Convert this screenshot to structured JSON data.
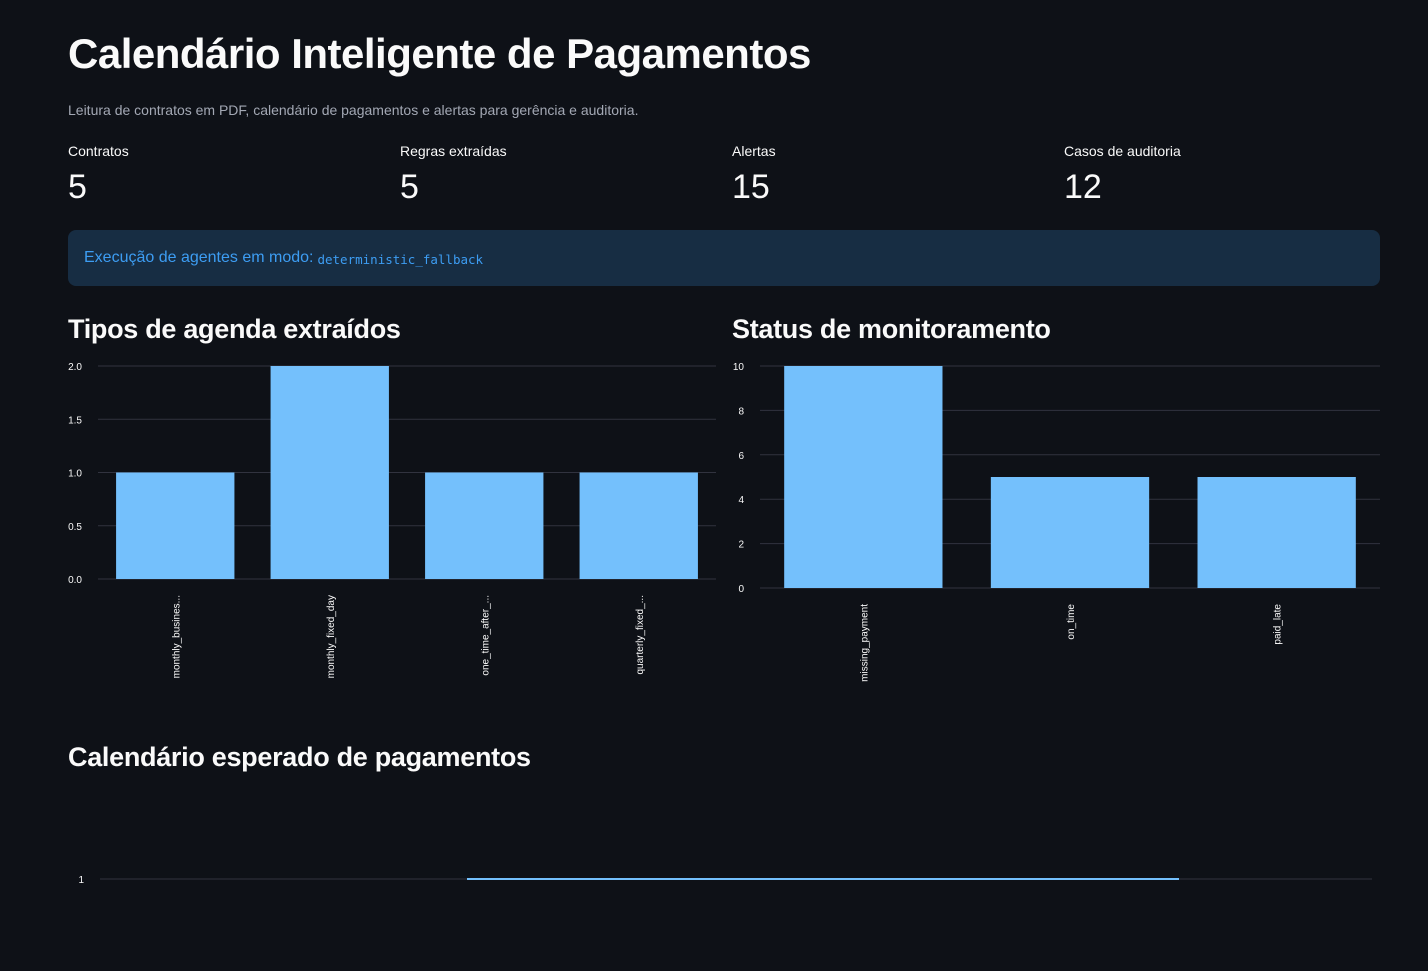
{
  "header": {
    "title": "Calendário Inteligente de Pagamentos",
    "subtitle": "Leitura de contratos em PDF, calendário de pagamentos e alertas para gerência e auditoria."
  },
  "metrics": [
    {
      "label": "Contratos",
      "value": "5"
    },
    {
      "label": "Regras extraídas",
      "value": "5"
    },
    {
      "label": "Alertas",
      "value": "15"
    },
    {
      "label": "Casos de auditoria",
      "value": "12"
    }
  ],
  "info": {
    "text": "Execução de agentes em modo:",
    "mode": "deterministic_fallback"
  },
  "sections": {
    "schedule_types": "Tipos de agenda extraídos",
    "monitoring_status": "Status de monitoramento",
    "expected_calendar": "Calendário esperado de pagamentos"
  },
  "colors": {
    "bar": "#74c0fc",
    "grid": "#31333f",
    "info_bg": "#172d43",
    "info_text": "#3d9df3"
  },
  "chart_data": [
    {
      "type": "bar",
      "categories": [
        "monthly_busines...",
        "monthly_fixed_day",
        "one_time_after_...",
        "quarterly_fixed_..."
      ],
      "values": [
        1,
        2,
        1,
        1
      ],
      "yticks": [
        "0.0",
        "0.5",
        "1.0",
        "1.5",
        "2.0"
      ],
      "ylim": [
        0,
        2
      ],
      "grid": true
    },
    {
      "type": "bar",
      "categories": [
        "missing_payment",
        "on_time",
        "paid_late"
      ],
      "values": [
        10,
        5,
        5
      ],
      "yticks": [
        "0",
        "2",
        "4",
        "6",
        "8",
        "10"
      ],
      "ylim": [
        0,
        10
      ],
      "grid": true
    },
    {
      "type": "line",
      "yticks": [
        "1"
      ],
      "values": [
        1,
        1
      ],
      "grid": true
    }
  ]
}
